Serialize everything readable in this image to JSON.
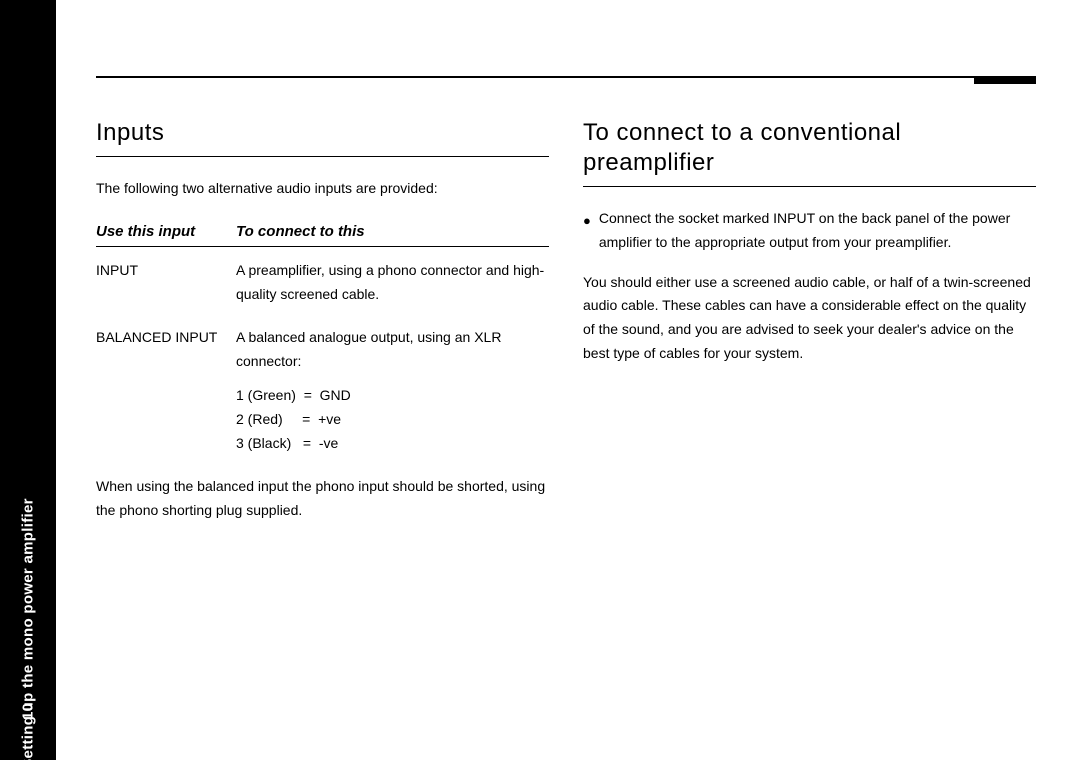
{
  "page": {
    "number": "10",
    "side_label": "Setting up the mono power amplifier"
  },
  "left": {
    "heading": "Inputs",
    "intro": "The following two alternative audio inputs are provided:",
    "table": {
      "head_a": "Use this input",
      "head_b": "To connect to this",
      "rows": [
        {
          "a": "INPUT",
          "b": "A preamplifier, using a phono connector and high-quality screened cable."
        },
        {
          "a": "BALANCED INPUT",
          "b": "A balanced analogue output, using an XLR connector:",
          "pins": "1 (Green)  =  GND\n2 (Red)     =  +ve\n3 (Black)   =  -ve"
        }
      ]
    },
    "footnote": "When using the balanced input the phono input should be shorted, using the phono shorting plug supplied."
  },
  "right": {
    "heading": "To connect to a conventional preamplifier",
    "bullet": "Connect the socket marked INPUT on the back panel of the power amplifier to the appropriate output from your preamplifier.",
    "para": "You should either use a screened audio cable, or half of a twin-screened audio cable. These cables can have a considerable effect on the quality of the sound, and you are advised to seek your dealer's advice on the best type of cables for your system."
  }
}
